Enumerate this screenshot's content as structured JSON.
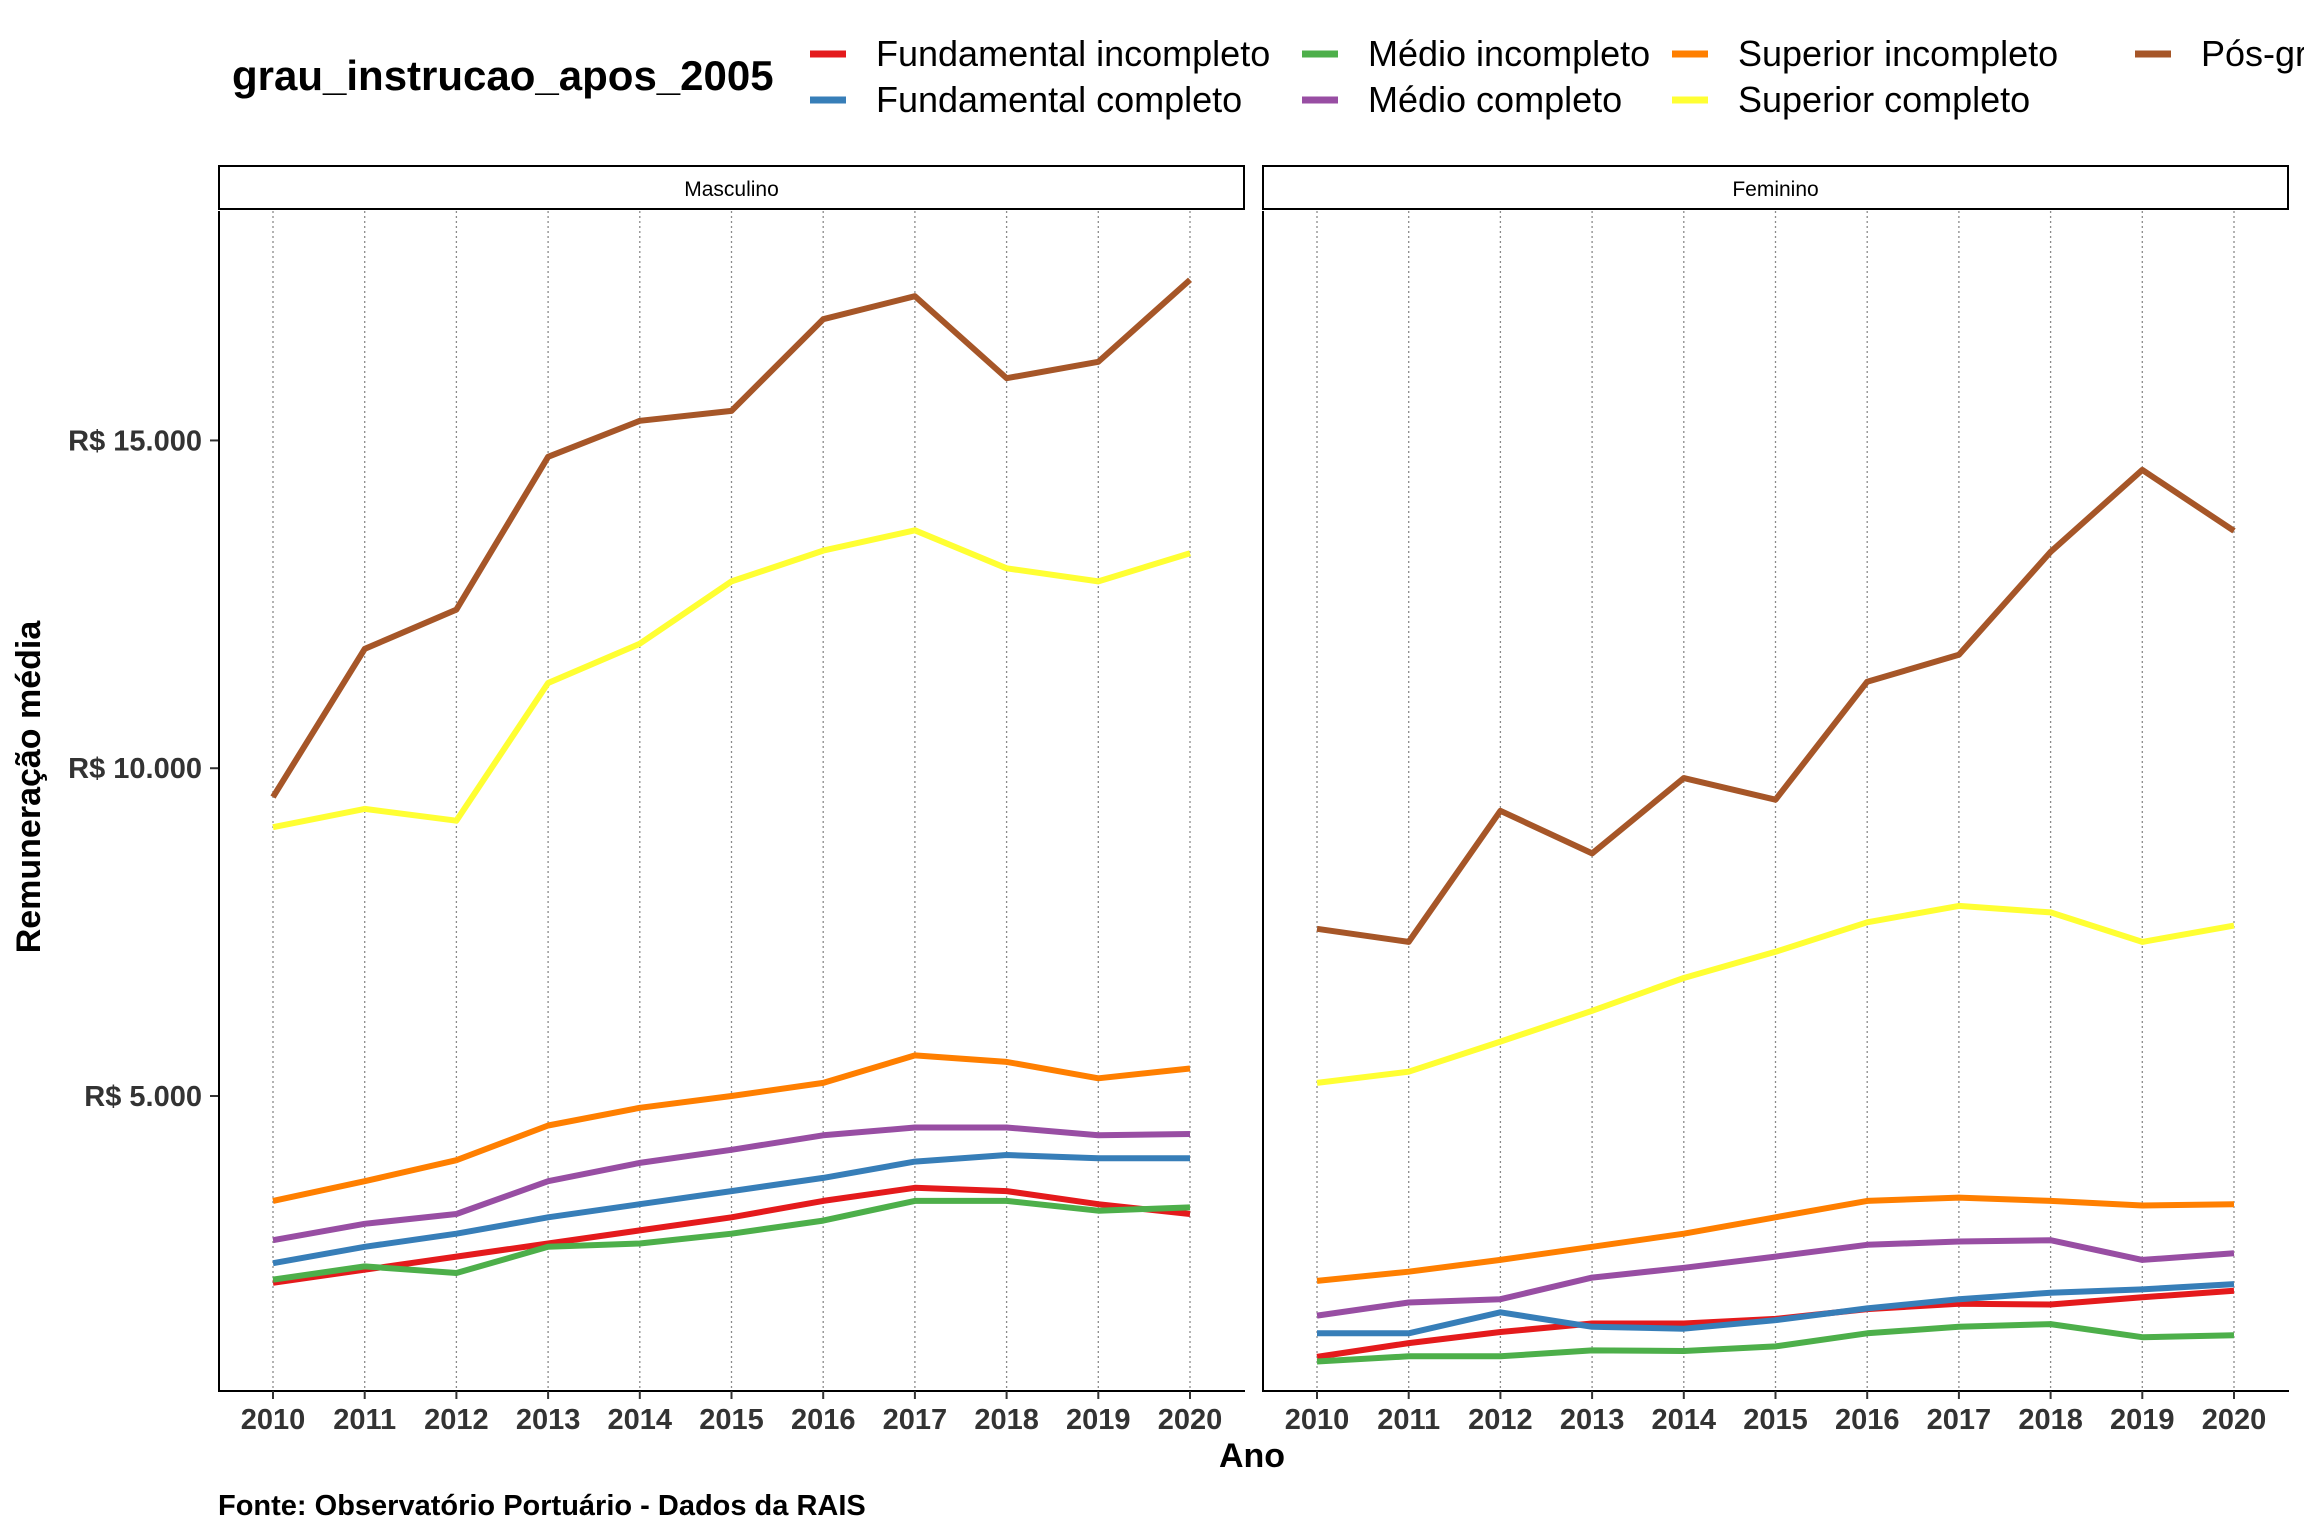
{
  "chart_data": {
    "type": "line",
    "legend_title": "grau_instrucao_apos_2005",
    "legend_position": "top",
    "series_names": [
      "Fundamental incompleto",
      "Fundamental completo",
      "Médio incompleto",
      "Médio completo",
      "Superior incompleto",
      "Superior completo",
      "Pós-grad"
    ],
    "colors": {
      "Fundamental incompleto": "#E41A1C",
      "Fundamental completo": "#377EB8",
      "Médio incompleto": "#4DAF4A",
      "Médio completo": "#984EA3",
      "Superior incompleto": "#FF7F00",
      "Superior completo": "#FFFF33",
      "Pós-grad": "#A65628"
    },
    "x": [
      2010,
      2011,
      2012,
      2013,
      2014,
      2015,
      2016,
      2017,
      2018,
      2019,
      2020
    ],
    "x_tick_labels": [
      "2010",
      "2011",
      "2012",
      "2013",
      "2014",
      "2015",
      "2016",
      "2017",
      "2018",
      "2019",
      "2020"
    ],
    "xlabel": "Ano",
    "ylabel": "Remuneração média",
    "ylim": [
      500,
      18500
    ],
    "y_ticks": [
      5000,
      10000,
      15000
    ],
    "y_tick_labels": [
      "R$ 5.000",
      "R$ 10.000",
      "R$ 15.000"
    ],
    "grid": "vertical dotted",
    "caption": "Fonte: Observatório Portuário - Dados da RAIS",
    "facets": [
      {
        "label": "Masculino",
        "series": [
          {
            "name": "Fundamental incompleto",
            "values": [
              2150,
              2350,
              2550,
              2750,
              2950,
              3150,
              3400,
              3600,
              3550,
              3350,
              3200
            ]
          },
          {
            "name": "Fundamental completo",
            "values": [
              2450,
              2700,
              2900,
              3150,
              3350,
              3550,
              3750,
              4000,
              4100,
              4050,
              4050
            ]
          },
          {
            "name": "Médio incompleto",
            "values": [
              2200,
              2400,
              2300,
              2700,
              2750,
              2900,
              3100,
              3400,
              3400,
              3250,
              3300
            ]
          },
          {
            "name": "Médio completo",
            "values": [
              2800,
              3050,
              3200,
              3700,
              3980,
              4180,
              4400,
              4520,
              4520,
              4400,
              4420
            ]
          },
          {
            "name": "Superior incompleto",
            "values": [
              3400,
              3700,
              4020,
              4550,
              4820,
              5000,
              5200,
              5620,
              5520,
              5270,
              5420
            ]
          },
          {
            "name": "Superior completo",
            "values": [
              9100,
              9380,
              9200,
              11300,
              11900,
              12850,
              13320,
              13630,
              13050,
              12850,
              13280
            ]
          },
          {
            "name": "Pós-grad",
            "values": [
              9560,
              11820,
              12420,
              14750,
              15300,
              15450,
              16850,
              17200,
              15950,
              16200,
              17450
            ]
          }
        ]
      },
      {
        "label": "Feminino",
        "series": [
          {
            "name": "Fundamental incompleto",
            "values": [
              1020,
              1230,
              1400,
              1530,
              1530,
              1600,
              1750,
              1830,
              1820,
              1930,
              2030
            ]
          },
          {
            "name": "Fundamental completo",
            "values": [
              1380,
              1380,
              1700,
              1480,
              1450,
              1580,
              1760,
              1900,
              2000,
              2050,
              2130
            ]
          },
          {
            "name": "Médio incompleto",
            "values": [
              950,
              1030,
              1030,
              1120,
              1110,
              1180,
              1380,
              1480,
              1520,
              1320,
              1350
            ]
          },
          {
            "name": "Médio completo",
            "values": [
              1650,
              1850,
              1900,
              2230,
              2380,
              2550,
              2730,
              2780,
              2800,
              2500,
              2600
            ]
          },
          {
            "name": "Superior incompleto",
            "values": [
              2180,
              2320,
              2500,
              2700,
              2900,
              3150,
              3400,
              3450,
              3400,
              3330,
              3350
            ]
          },
          {
            "name": "Superior completo",
            "values": [
              5200,
              5370,
              5830,
              6300,
              6800,
              7200,
              7650,
              7900,
              7800,
              7350,
              7600
            ]
          },
          {
            "name": "Pós-grad",
            "values": [
              7550,
              7350,
              9350,
              8700,
              9850,
              9520,
              11320,
              11730,
              13300,
              14550,
              13620
            ]
          }
        ]
      }
    ]
  }
}
